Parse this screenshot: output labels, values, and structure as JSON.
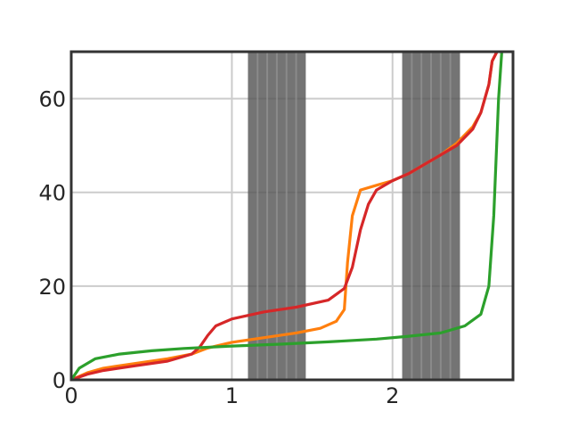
{
  "chart_data": {
    "type": "line",
    "title": "",
    "xlabel": "",
    "ylabel": "",
    "xlim": [
      0,
      2.75
    ],
    "ylim": [
      0,
      70
    ],
    "xticks": [
      0,
      1,
      2
    ],
    "yticks": [
      0,
      20,
      40,
      60
    ],
    "xtick_labels": [
      "0",
      "1",
      "2"
    ],
    "ytick_labels": [
      "0",
      "20",
      "40",
      "60"
    ],
    "grid": true,
    "legend": "none",
    "shaded_bands": [
      {
        "x_range": [
          1.1,
          1.46
        ],
        "color": "#555555",
        "stripes": 6
      },
      {
        "x_range": [
          2.06,
          2.42
        ],
        "color": "#555555",
        "stripes": 6
      }
    ],
    "series": [
      {
        "color": "#ff7f0e",
        "x": [
          0,
          0.1,
          0.2,
          0.4,
          0.6,
          0.75,
          0.85,
          1.0,
          1.2,
          1.4,
          1.55,
          1.65,
          1.7,
          1.72,
          1.75,
          1.8,
          1.9,
          2.0,
          2.1,
          2.2,
          2.3,
          2.4,
          2.5,
          2.55,
          2.6,
          2.62,
          2.65
        ],
        "y": [
          0,
          1.5,
          2.5,
          3.5,
          4.5,
          5.5,
          6.8,
          8.0,
          9.0,
          10.0,
          11.0,
          12.5,
          15.0,
          25.0,
          35.0,
          40.5,
          41.5,
          42.5,
          44.0,
          46.0,
          48.0,
          50.5,
          54.0,
          57.0,
          63.0,
          68.0,
          70.0
        ]
      },
      {
        "color": "#d62728",
        "x": [
          0,
          0.1,
          0.2,
          0.4,
          0.6,
          0.75,
          0.8,
          0.85,
          0.9,
          1.0,
          1.2,
          1.4,
          1.6,
          1.7,
          1.75,
          1.8,
          1.85,
          1.9,
          2.0,
          2.1,
          2.2,
          2.3,
          2.4,
          2.5,
          2.55,
          2.6,
          2.62,
          2.65
        ],
        "y": [
          0,
          1.2,
          2.0,
          3.0,
          4.0,
          5.5,
          7.0,
          9.5,
          11.5,
          13.0,
          14.5,
          15.5,
          17.0,
          19.5,
          24.0,
          32.0,
          37.5,
          40.5,
          42.5,
          44.0,
          46.0,
          48.0,
          50.0,
          53.5,
          57.0,
          63.0,
          68.0,
          70.0
        ]
      },
      {
        "color": "#2ca02c",
        "x": [
          0,
          0.05,
          0.15,
          0.3,
          0.5,
          0.7,
          1.0,
          1.3,
          1.6,
          1.9,
          2.1,
          2.3,
          2.45,
          2.55,
          2.6,
          2.63,
          2.66,
          2.68
        ],
        "y": [
          0,
          2.5,
          4.5,
          5.5,
          6.2,
          6.7,
          7.2,
          7.6,
          8.1,
          8.7,
          9.3,
          10.0,
          11.5,
          14.0,
          20.0,
          35.0,
          60.0,
          70.0
        ]
      }
    ]
  }
}
